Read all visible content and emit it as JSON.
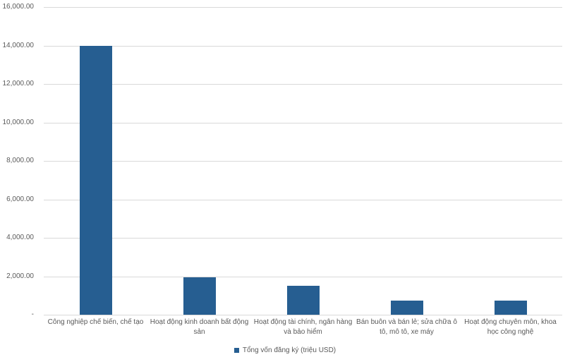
{
  "chart_data": {
    "type": "bar",
    "title": "",
    "xlabel": "",
    "ylabel": "",
    "categories": [
      "Công nghiệp chế biến, chế tạo",
      "Hoạt động kinh doanh bất động sản",
      "Hoạt động tài chính, ngân hàng và bảo hiểm",
      "Bán buôn và bán lẻ; sửa chữa ô tô, mô tô, xe máy",
      "Hoạt động chuyên môn, khoa học công nghệ"
    ],
    "series": [
      {
        "name": "Tổng vốn đăng ký (triệu USD)",
        "values": [
          13970,
          1930,
          1520,
          735,
          740
        ]
      }
    ],
    "ylim": [
      0,
      16000
    ],
    "ytick_step": 2000,
    "y_tick_labels": [
      "-",
      "2,000.00",
      "4,000.00",
      "6,000.00",
      "8,000.00",
      "10,000.00",
      "12,000.00",
      "14,000.00",
      "16,000.00"
    ],
    "grid": true,
    "legend": {
      "position": "bottom-center",
      "entries": [
        "Tổng vốn đăng ký (triệu USD)"
      ]
    },
    "colors": {
      "bar": "#265e91",
      "gridline": "#d9d9d9",
      "axis_text": "#595959",
      "background": "#ffffff"
    }
  }
}
